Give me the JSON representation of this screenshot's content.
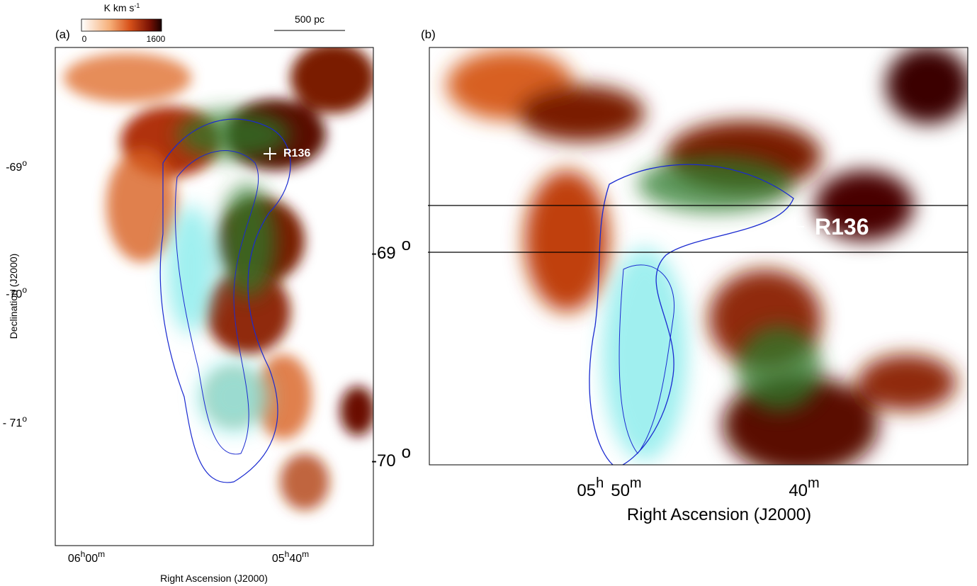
{
  "colorbar": {
    "label": "K km s",
    "label_sup": "-1",
    "min_label": "0",
    "max_label": "1600"
  },
  "scale_bar": "500 pc",
  "panel_a": {
    "tag": "(a)",
    "source": "R136",
    "y_axis_title": "Declination (J2000)",
    "x_axis_title": "Right Ascension (J2000)",
    "yticks": [
      {
        "deg": "-69",
        "sup": "o"
      },
      {
        "deg": "-70",
        "sup": "o"
      },
      {
        "deg": "- 71",
        "sup": "o"
      }
    ],
    "xticks": [
      {
        "h": "06",
        "hsup": "h",
        "m": "00",
        "msup": "m"
      },
      {
        "h": "05",
        "hsup": "h",
        "m": "40",
        "msup": "m"
      }
    ]
  },
  "panel_b": {
    "tag": "(b)",
    "source": "R136",
    "x_axis_title": "Right Ascension (J2000)",
    "yticks": [
      {
        "deg": "-69",
        "sup": "o"
      },
      {
        "deg": "-70",
        "sup": "o"
      }
    ],
    "xticks": [
      {
        "h": "05",
        "hsup": "h",
        "m": "50",
        "msup": "m"
      },
      {
        "m": "40",
        "msup": "m"
      }
    ]
  }
}
